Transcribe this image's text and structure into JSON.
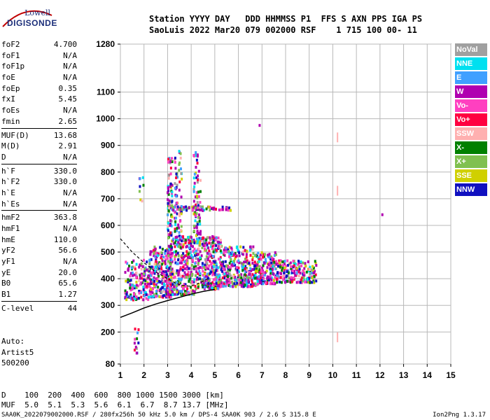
{
  "logo": {
    "line1": "Lowell",
    "line2": "DIGISONDE"
  },
  "header": {
    "line1": "Station YYYY DAY   DDD HHMMSS P1  FFS S AXN PPS IGA PS",
    "line2": "SaoLuis 2022 Mar20 079 002000 RSF    1 715 100 00- 11"
  },
  "params": {
    "group1": [
      {
        "label": "foF2",
        "value": "4.700"
      },
      {
        "label": "foF1",
        "value": "N/A"
      },
      {
        "label": "foF1p",
        "value": "N/A"
      },
      {
        "label": "foE",
        "value": "N/A"
      },
      {
        "label": "foEp",
        "value": "0.35"
      },
      {
        "label": "fxI",
        "value": "5.45"
      },
      {
        "label": "foEs",
        "value": "N/A"
      },
      {
        "label": "fmin",
        "value": "2.65"
      }
    ],
    "group2": [
      {
        "label": "MUF(D)",
        "value": "13.68"
      },
      {
        "label": "M(D)",
        "value": "2.91"
      },
      {
        "label": "D",
        "value": "N/A"
      }
    ],
    "group3": [
      {
        "label": "h`F",
        "value": "330.0"
      },
      {
        "label": "h`F2",
        "value": "330.0"
      },
      {
        "label": "h`E",
        "value": "N/A"
      },
      {
        "label": "h`Es",
        "value": "N/A"
      }
    ],
    "group4": [
      {
        "label": "hmF2",
        "value": "363.8"
      },
      {
        "label": "hmF1",
        "value": "N/A"
      },
      {
        "label": "hmE",
        "value": "110.0"
      },
      {
        "label": "yF2",
        "value": "56.6"
      },
      {
        "label": "yF1",
        "value": "N/A"
      },
      {
        "label": "yE",
        "value": "20.0"
      },
      {
        "label": "B0",
        "value": "65.6"
      },
      {
        "label": "B1",
        "value": "1.27"
      }
    ],
    "group5": [
      {
        "label": "C-level",
        "value": "44"
      }
    ]
  },
  "auto": {
    "line1": "Auto:",
    "line2": "Artist5",
    "line3": "500200"
  },
  "legend": [
    {
      "label": "NoVal",
      "color": "#a0a0a0",
      "text_color": "#ffffff"
    },
    {
      "label": "NNE",
      "color": "#00e0f0",
      "text_color": "#ffffff"
    },
    {
      "label": "E",
      "color": "#40a0ff",
      "text_color": "#ffffff"
    },
    {
      "label": "W",
      "color": "#b000b0",
      "text_color": "#ffffff"
    },
    {
      "label": "Vo-",
      "color": "#ff40c0",
      "text_color": "#ffffff"
    },
    {
      "label": "Vo+",
      "color": "#ff0040",
      "text_color": "#ffffff"
    },
    {
      "label": "SSW",
      "color": "#ffb0b0",
      "text_color": "#ffffff"
    },
    {
      "label": "X-",
      "color": "#008000",
      "text_color": "#ffffff"
    },
    {
      "label": "X+",
      "color": "#80c050",
      "text_color": "#ffffff"
    },
    {
      "label": "SSE",
      "color": "#d0d000",
      "text_color": "#ffffff"
    },
    {
      "label": "NNW",
      "color": "#1010c0",
      "text_color": "#ffffff"
    }
  ],
  "muf_table": {
    "d_line": "D    100  200  400  600  800 1000 1500 3000 [km]",
    "muf_line": "MUF  5.0  5.1  5.3  5.6  6.1  6.7  8.7 13.7 [MHz]"
  },
  "footer": {
    "left": "SAA0K_2022079002000.RSF / 280fx256h 50 kHz 5.0 km / DPS-4 SAA0K 903 / 2.6 S 315.8 E",
    "right": "Ion2Png 1.3.17"
  },
  "chart_data": {
    "type": "scatter",
    "x_ticks": [
      1,
      2,
      3,
      4,
      5,
      6,
      7,
      8,
      9,
      10,
      11,
      12,
      13,
      14,
      15
    ],
    "y_ticks": [
      80,
      200,
      300,
      400,
      500,
      600,
      700,
      800,
      900,
      1000,
      1100,
      1280
    ],
    "xlim": [
      1,
      15
    ],
    "ylim": [
      80,
      1280
    ],
    "x_unit": "MHz",
    "y_unit": "km",
    "grid": true,
    "legend_position": "right",
    "clusters": [
      {
        "x": [
          1.2,
          2.2
        ],
        "y": [
          320,
          470
        ],
        "n": 160
      },
      {
        "x": [
          2.2,
          3.2
        ],
        "y": [
          330,
          520
        ],
        "n": 260
      },
      {
        "x": [
          3.0,
          4.2
        ],
        "y": [
          340,
          560
        ],
        "n": 320
      },
      {
        "x": [
          4.2,
          5.3
        ],
        "y": [
          360,
          560
        ],
        "n": 300
      },
      {
        "x": [
          5.3,
          6.8
        ],
        "y": [
          370,
          520
        ],
        "n": 300
      },
      {
        "x": [
          6.8,
          7.6
        ],
        "y": [
          380,
          500
        ],
        "n": 140
      },
      {
        "x": [
          7.6,
          9.3
        ],
        "y": [
          385,
          470
        ],
        "n": 200
      },
      {
        "x": [
          3.0,
          3.2
        ],
        "y": [
          560,
          880
        ],
        "n": 70
      },
      {
        "x": [
          3.3,
          3.6
        ],
        "y": [
          520,
          880
        ],
        "n": 80
      },
      {
        "x": [
          4.1,
          4.4
        ],
        "y": [
          560,
          880
        ],
        "n": 70
      },
      {
        "x": [
          3.0,
          5.7
        ],
        "y": [
          655,
          670
        ],
        "n": 60
      },
      {
        "x": [
          1.8,
          2.0
        ],
        "y": [
          690,
          780
        ],
        "n": 8
      },
      {
        "x": [
          1.6,
          1.8
        ],
        "y": [
          120,
          230
        ],
        "n": 12
      }
    ],
    "isolated_points": [
      {
        "x": 6.9,
        "y": 975
      },
      {
        "x": 12.1,
        "y": 640
      },
      {
        "x": 9.3,
        "y": 450
      }
    ],
    "pink_marks": [
      {
        "x": 10.2,
        "y": 930
      },
      {
        "x": 10.2,
        "y": 730
      },
      {
        "x": 10.2,
        "y": 180
      }
    ],
    "trace_curve": {
      "x": [
        1.0,
        1.5,
        2.0,
        2.5,
        3.0,
        3.5,
        4.0,
        4.5,
        5.0
      ],
      "y": [
        255,
        272,
        290,
        305,
        318,
        330,
        342,
        352,
        360
      ]
    },
    "profile_curve": {
      "x": [
        1.0,
        1.5,
        2.0,
        2.5,
        3.0,
        3.3,
        3.6,
        3.9,
        4.2,
        4.5,
        4.7
      ],
      "y": [
        550,
        500,
        460,
        425,
        400,
        385,
        375,
        372,
        378,
        390,
        400
      ]
    }
  }
}
